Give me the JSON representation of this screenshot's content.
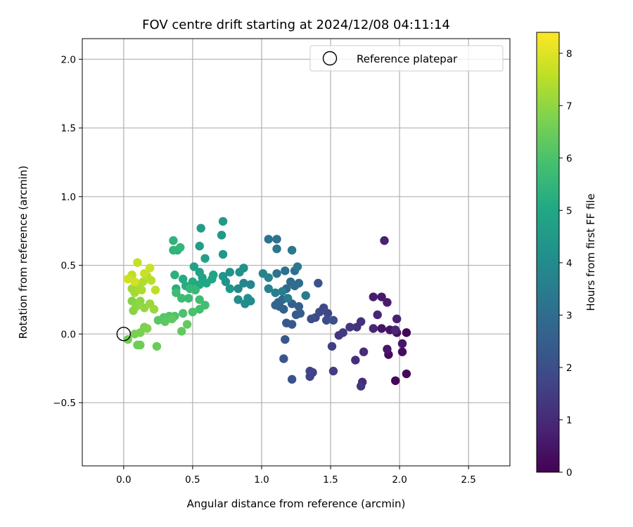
{
  "chart_data": {
    "type": "scatter",
    "title": "FOV centre drift starting at 2024/12/08 04:11:14",
    "xlabel": "Angular distance from reference (arcmin)",
    "ylabel": "Rotation from reference (arcmin)",
    "xlim": [
      -0.3,
      2.8
    ],
    "ylim": [
      -0.96,
      2.15
    ],
    "xticks": [
      "0.0",
      "0.5",
      "1.0",
      "1.5",
      "2.0",
      "2.5"
    ],
    "xtick_values": [
      0.0,
      0.5,
      1.0,
      1.5,
      2.0,
      2.5
    ],
    "yticks": [
      "−0.5",
      "0.0",
      "0.5",
      "1.0",
      "1.5",
      "2.0"
    ],
    "ytick_values": [
      -0.5,
      0.0,
      0.5,
      1.0,
      1.5,
      2.0
    ],
    "grid": true,
    "legend": {
      "placement": "top-right",
      "entries": [
        "Reference platepar"
      ]
    },
    "reference_point": {
      "x": 0.0,
      "y": 0.0
    },
    "colorbar": {
      "label": "Hours from first FF file",
      "range": [
        0,
        8.4
      ],
      "ticks": [
        "0",
        "1",
        "2",
        "3",
        "4",
        "5",
        "6",
        "7",
        "8"
      ],
      "tick_values": [
        0,
        1,
        2,
        3,
        4,
        5,
        6,
        7,
        8
      ],
      "colormap": "viridis"
    },
    "series": [
      {
        "points": [
          [
            2.05,
            0.01,
            0.1
          ],
          [
            1.97,
            -0.34,
            0.15
          ],
          [
            2.05,
            -0.29,
            0.2
          ],
          [
            1.92,
            -0.15,
            0.25
          ],
          [
            2.02,
            -0.13,
            0.3
          ],
          [
            1.98,
            0.01,
            0.35
          ],
          [
            1.93,
            0.03,
            0.4
          ],
          [
            1.87,
            0.04,
            0.45
          ],
          [
            2.02,
            -0.07,
            0.5
          ],
          [
            1.91,
            -0.11,
            0.55
          ],
          [
            1.87,
            0.27,
            0.6
          ],
          [
            1.91,
            0.23,
            0.65
          ],
          [
            1.81,
            0.27,
            0.7
          ],
          [
            1.98,
            0.11,
            0.75
          ],
          [
            1.89,
            0.68,
            0.8
          ],
          [
            1.84,
            0.14,
            0.85
          ],
          [
            1.81,
            0.04,
            0.9
          ],
          [
            1.97,
            0.03,
            0.95
          ],
          [
            1.73,
            -0.35,
            1.0
          ],
          [
            1.74,
            -0.13,
            1.05
          ],
          [
            1.68,
            -0.19,
            1.1
          ],
          [
            1.72,
            0.09,
            1.15
          ],
          [
            1.69,
            0.05,
            1.2
          ],
          [
            1.72,
            -0.38,
            1.25
          ],
          [
            1.64,
            0.05,
            1.3
          ],
          [
            1.56,
            -0.01,
            1.35
          ],
          [
            1.59,
            0.01,
            1.4
          ],
          [
            1.52,
            -0.27,
            1.5
          ],
          [
            1.51,
            -0.09,
            1.55
          ],
          [
            1.37,
            -0.28,
            1.6
          ],
          [
            1.35,
            -0.31,
            1.65
          ],
          [
            1.35,
            -0.27,
            1.7
          ],
          [
            1.48,
            0.15,
            1.75
          ],
          [
            1.45,
            0.19,
            1.8
          ],
          [
            1.39,
            0.12,
            1.85
          ],
          [
            1.42,
            0.16,
            1.9
          ],
          [
            1.36,
            0.11,
            1.95
          ],
          [
            1.47,
            0.1,
            2.0
          ],
          [
            1.52,
            0.1,
            2.05
          ],
          [
            1.41,
            0.37,
            2.1
          ],
          [
            1.22,
            -0.33,
            2.15
          ],
          [
            1.16,
            -0.18,
            2.2
          ],
          [
            1.17,
            -0.04,
            2.25
          ],
          [
            1.22,
            0.07,
            2.3
          ],
          [
            1.18,
            0.08,
            2.35
          ],
          [
            1.25,
            0.14,
            2.4
          ],
          [
            1.28,
            0.15,
            2.45
          ],
          [
            1.27,
            0.2,
            2.5
          ],
          [
            1.22,
            0.22,
            2.55
          ],
          [
            1.13,
            0.2,
            2.6
          ],
          [
            1.16,
            0.18,
            2.65
          ],
          [
            1.12,
            0.23,
            2.7
          ],
          [
            1.1,
            0.21,
            2.75
          ],
          [
            1.15,
            0.25,
            2.8
          ],
          [
            1.18,
            0.33,
            2.85
          ],
          [
            1.21,
            0.38,
            2.9
          ],
          [
            1.24,
            0.35,
            2.95
          ],
          [
            1.27,
            0.37,
            3.0
          ],
          [
            1.24,
            0.46,
            3.05
          ],
          [
            1.17,
            0.46,
            3.1
          ],
          [
            1.11,
            0.44,
            3.15
          ],
          [
            1.05,
            0.69,
            3.2
          ],
          [
            1.11,
            0.69,
            3.25
          ],
          [
            1.11,
            0.62,
            3.3
          ],
          [
            1.22,
            0.61,
            3.35
          ],
          [
            1.26,
            0.49,
            3.4
          ],
          [
            1.32,
            0.28,
            3.45
          ],
          [
            1.19,
            0.26,
            3.5
          ],
          [
            1.15,
            0.31,
            3.55
          ],
          [
            1.1,
            0.3,
            3.6
          ],
          [
            1.05,
            0.33,
            3.65
          ],
          [
            1.01,
            0.44,
            3.7
          ],
          [
            1.05,
            0.41,
            3.75
          ],
          [
            0.92,
            0.36,
            3.8
          ],
          [
            0.87,
            0.37,
            3.85
          ],
          [
            0.83,
            0.33,
            3.9
          ],
          [
            0.88,
            0.22,
            3.95
          ],
          [
            0.92,
            0.24,
            4.0
          ],
          [
            0.83,
            0.25,
            4.05
          ],
          [
            0.9,
            0.26,
            4.1
          ],
          [
            0.87,
            0.48,
            4.15
          ],
          [
            0.84,
            0.45,
            4.2
          ],
          [
            0.77,
            0.45,
            4.25
          ],
          [
            0.72,
            0.42,
            4.3
          ],
          [
            0.74,
            0.38,
            4.35
          ],
          [
            0.77,
            0.33,
            4.4
          ],
          [
            0.72,
            0.58,
            4.45
          ],
          [
            0.71,
            0.72,
            4.5
          ],
          [
            0.72,
            0.82,
            4.55
          ],
          [
            0.56,
            0.77,
            4.6
          ],
          [
            0.55,
            0.64,
            4.65
          ],
          [
            0.59,
            0.55,
            4.7
          ],
          [
            0.51,
            0.49,
            4.75
          ],
          [
            0.55,
            0.45,
            4.8
          ],
          [
            0.57,
            0.41,
            4.85
          ],
          [
            0.65,
            0.43,
            4.9
          ],
          [
            0.64,
            0.4,
            4.95
          ],
          [
            0.6,
            0.37,
            5.0
          ],
          [
            0.55,
            0.36,
            5.05
          ],
          [
            0.5,
            0.38,
            5.1
          ],
          [
            0.43,
            0.4,
            5.15
          ],
          [
            0.45,
            0.35,
            5.2
          ],
          [
            0.38,
            0.33,
            5.25
          ],
          [
            0.37,
            0.43,
            5.3
          ],
          [
            0.39,
            0.61,
            5.35
          ],
          [
            0.36,
            0.68,
            5.4
          ],
          [
            0.36,
            0.61,
            5.45
          ],
          [
            0.41,
            0.63,
            5.5
          ],
          [
            0.48,
            0.33,
            5.55
          ],
          [
            0.52,
            0.32,
            5.6
          ],
          [
            0.47,
            0.26,
            5.65
          ],
          [
            0.42,
            0.26,
            5.7
          ],
          [
            0.38,
            0.3,
            5.75
          ],
          [
            0.55,
            0.25,
            5.8
          ],
          [
            0.59,
            0.21,
            5.85
          ],
          [
            0.55,
            0.18,
            5.9
          ],
          [
            0.5,
            0.16,
            5.95
          ],
          [
            0.43,
            0.15,
            6.0
          ],
          [
            0.37,
            0.13,
            6.05
          ],
          [
            0.33,
            0.13,
            6.1
          ],
          [
            0.29,
            0.12,
            6.15
          ],
          [
            0.25,
            0.1,
            6.2
          ],
          [
            0.3,
            0.09,
            6.25
          ],
          [
            0.35,
            0.11,
            6.3
          ],
          [
            0.42,
            0.02,
            6.35
          ],
          [
            0.46,
            0.07,
            6.4
          ],
          [
            0.24,
            -0.09,
            6.45
          ],
          [
            0.12,
            -0.08,
            6.5
          ],
          [
            0.1,
            -0.08,
            6.55
          ],
          [
            0.03,
            -0.04,
            6.6
          ],
          [
            0.08,
            0.0,
            6.65
          ],
          [
            0.12,
            0.01,
            6.7
          ],
          [
            0.15,
            0.05,
            6.75
          ],
          [
            0.17,
            0.04,
            6.8
          ],
          [
            0.06,
            0.24,
            6.85
          ],
          [
            0.07,
            0.17,
            6.9
          ],
          [
            0.09,
            0.2,
            6.95
          ],
          [
            0.12,
            0.24,
            7.0
          ],
          [
            0.15,
            0.19,
            7.05
          ],
          [
            0.19,
            0.22,
            7.1
          ],
          [
            0.22,
            0.18,
            7.15
          ],
          [
            0.06,
            0.33,
            7.2
          ],
          [
            0.08,
            0.3,
            7.25
          ],
          [
            0.11,
            0.35,
            7.3
          ],
          [
            0.13,
            0.32,
            7.35
          ],
          [
            0.14,
            0.38,
            7.4
          ],
          [
            0.17,
            0.42,
            7.45
          ],
          [
            0.2,
            0.39,
            7.5
          ],
          [
            0.23,
            0.32,
            7.55
          ],
          [
            0.06,
            0.43,
            7.6
          ],
          [
            0.1,
            0.52,
            7.65
          ],
          [
            0.15,
            0.44,
            7.7
          ],
          [
            0.19,
            0.48,
            7.75
          ],
          [
            0.03,
            0.4,
            7.8
          ],
          [
            0.08,
            0.38,
            7.85
          ]
        ]
      }
    ]
  }
}
